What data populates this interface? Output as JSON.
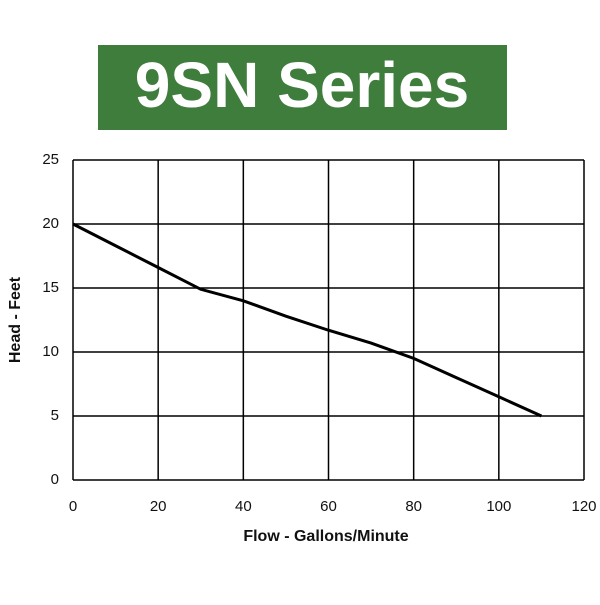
{
  "chart_data": {
    "type": "line",
    "title": "9SN Series",
    "x_label": "Flow - Gallons/Minute",
    "y_label": "Head - Feet",
    "x": [
      0,
      10,
      20,
      30,
      40,
      50,
      60,
      70,
      80,
      90,
      100,
      110
    ],
    "values": [
      20,
      18.3,
      16.6,
      14.9,
      14,
      12.8,
      11.7,
      10.7,
      9.5,
      8,
      6.5,
      5
    ],
    "color": "#000000",
    "xlim": [
      0,
      120
    ],
    "xticks": [
      0,
      20,
      40,
      60,
      80,
      100,
      120
    ],
    "ylim": [
      0,
      25
    ],
    "yticks": [
      0,
      5,
      10,
      15,
      20,
      25
    ],
    "grid": true
  }
}
